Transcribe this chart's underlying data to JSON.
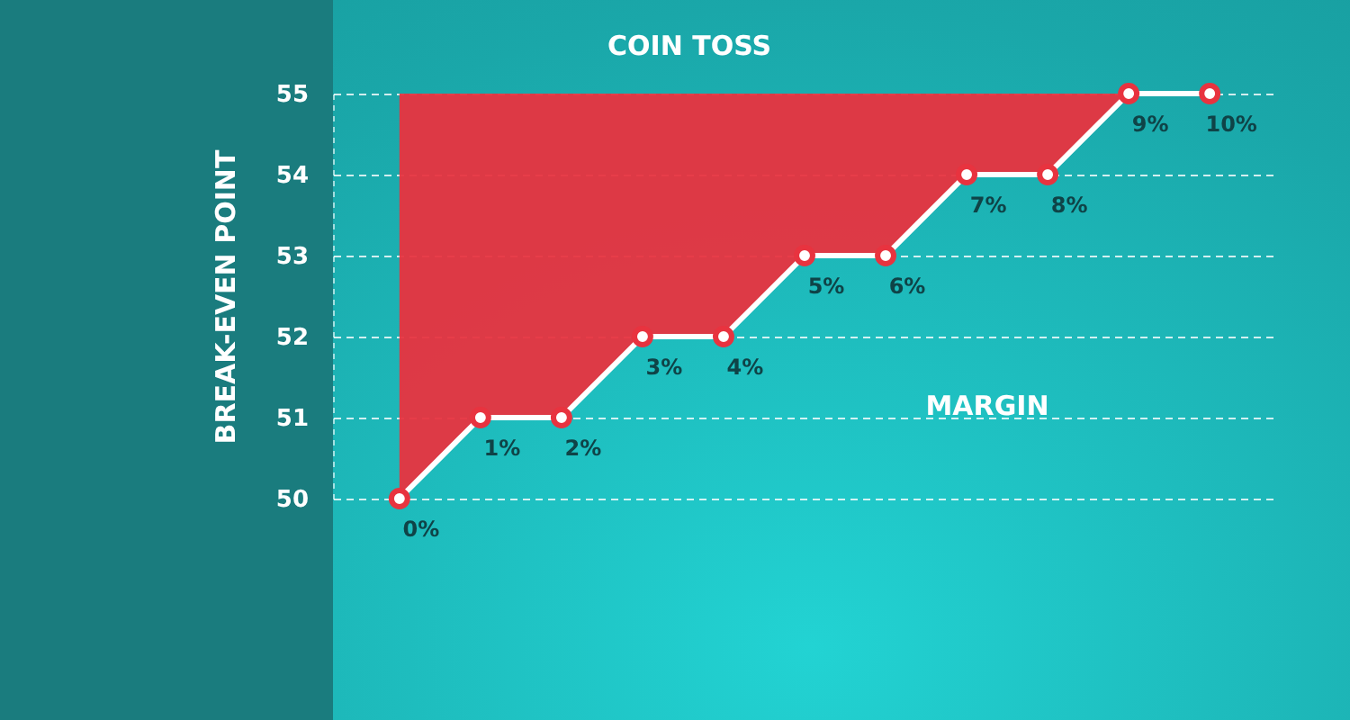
{
  "chart_data": {
    "type": "line",
    "title": "COIN TOSS",
    "xlabel": "MARGIN",
    "ylabel": "BREAK-EVEN POINT",
    "categories": [
      "0%",
      "1%",
      "2%",
      "3%",
      "4%",
      "5%",
      "6%",
      "7%",
      "8%",
      "9%",
      "10%"
    ],
    "series": [
      {
        "color": "#ffffff",
        "values": [
          50,
          51,
          51,
          52,
          52,
          53,
          53,
          54,
          54,
          55,
          55
        ],
        "lower": [
          50,
          51,
          51,
          52,
          52,
          53,
          53,
          54,
          54,
          55,
          55
        ],
        "upper": [
          55,
          55,
          55,
          55,
          55,
          55,
          55,
          55,
          55,
          55,
          55
        ]
      }
    ],
    "ylim": [
      50,
      55
    ],
    "yticks": [
      50,
      51,
      52,
      53,
      54,
      55
    ],
    "grid": "y",
    "marker": "circle",
    "line_style": "solid"
  }
}
